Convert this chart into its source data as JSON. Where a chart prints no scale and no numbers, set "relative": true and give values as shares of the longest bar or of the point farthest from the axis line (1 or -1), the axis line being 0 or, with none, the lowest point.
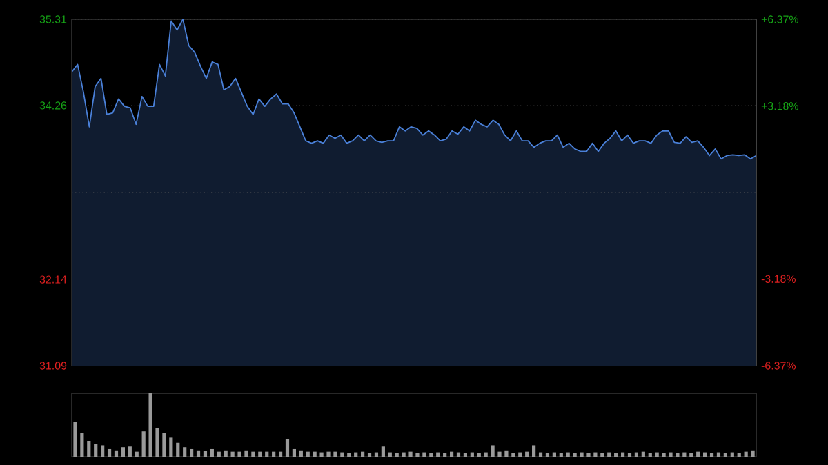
{
  "chart_data": [
    {
      "type": "area",
      "categories": [
        null,
        null,
        null,
        null,
        null,
        null,
        null,
        null,
        null,
        null,
        null,
        null,
        null,
        null,
        null,
        null,
        null,
        null,
        null,
        null,
        null,
        null,
        null,
        null,
        null,
        null,
        null,
        null,
        null,
        null,
        null,
        null,
        null,
        null,
        null,
        null,
        null,
        null,
        null,
        null,
        null,
        null,
        null,
        null,
        null,
        null,
        null,
        null,
        null,
        null,
        null,
        null,
        null,
        null,
        null,
        null,
        null,
        null,
        null,
        null,
        null,
        null,
        null,
        null,
        null,
        null,
        null,
        null,
        null,
        null,
        null,
        null,
        null,
        null,
        null,
        null,
        null,
        null,
        null,
        null,
        null,
        null,
        null,
        null,
        null,
        null,
        null,
        null,
        null,
        null,
        null,
        null,
        null,
        null,
        null,
        null,
        null,
        null,
        null,
        null,
        null,
        null,
        null,
        null,
        null,
        null,
        null,
        null,
        null,
        null,
        null,
        null,
        null,
        null,
        null,
        null,
        null,
        null
      ],
      "ylim": [
        31.09,
        35.31
      ],
      "yticks": [
        31.09,
        32.14,
        34.26,
        35.31
      ],
      "y2lim": [
        -6.37,
        6.37
      ],
      "y2ticks": [
        {
          "value": -6.37,
          "label": "-6.37%"
        },
        {
          "value": -3.18,
          "label": "-3.18%"
        },
        {
          "value": 3.18,
          "label": "+3.18%"
        },
        {
          "value": 6.37,
          "label": "+6.37%"
        }
      ],
      "ref_lines": [
        {
          "axis": "y",
          "value": 33.2,
          "line_style": "dotted"
        }
      ],
      "grid": "y",
      "series": [
        {
          "color": "#4a80d8",
          "values": [
            34.67,
            34.76,
            34.42,
            34.0,
            34.49,
            34.59,
            34.15,
            34.17,
            34.34,
            34.25,
            34.23,
            34.03,
            34.37,
            34.25,
            34.25,
            34.76,
            34.62,
            35.29,
            35.18,
            35.31,
            34.99,
            34.91,
            34.74,
            34.59,
            34.79,
            34.76,
            34.45,
            34.49,
            34.59,
            34.42,
            34.25,
            34.15,
            34.34,
            34.25,
            34.34,
            34.4,
            34.28,
            34.28,
            34.17,
            34.0,
            33.83,
            33.8,
            33.83,
            33.8,
            33.9,
            33.86,
            33.9,
            33.8,
            33.83,
            33.9,
            33.83,
            33.9,
            33.83,
            33.81,
            33.83,
            33.83,
            34.0,
            33.95,
            34.0,
            33.98,
            33.9,
            33.95,
            33.9,
            33.83,
            33.85,
            33.95,
            33.91,
            34.0,
            33.95,
            34.08,
            34.03,
            34.0,
            34.08,
            34.03,
            33.9,
            33.83,
            33.95,
            33.83,
            33.83,
            33.75,
            33.8,
            33.83,
            33.83,
            33.9,
            33.75,
            33.8,
            33.73,
            33.7,
            33.7,
            33.8,
            33.7,
            33.8,
            33.86,
            33.95,
            33.83,
            33.9,
            33.8,
            33.83,
            33.83,
            33.8,
            33.9,
            33.95,
            33.95,
            33.81,
            33.8,
            33.88,
            33.81,
            33.83,
            33.75,
            33.65,
            33.73,
            33.61,
            33.65,
            33.66,
            33.65,
            33.66,
            33.61,
            33.65
          ]
        }
      ]
    },
    {
      "type": "bar",
      "relative": true,
      "color": "#9a9a9a",
      "categories": [
        null,
        null,
        null,
        null,
        null,
        null,
        null,
        null,
        null,
        null,
        null,
        null,
        null,
        null,
        null,
        null,
        null,
        null,
        null,
        null,
        null,
        null,
        null,
        null,
        null,
        null,
        null,
        null,
        null,
        null,
        null,
        null,
        null,
        null,
        null,
        null,
        null,
        null,
        null,
        null,
        null,
        null,
        null,
        null,
        null,
        null,
        null,
        null,
        null,
        null,
        null,
        null,
        null,
        null,
        null,
        null,
        null,
        null,
        null,
        null,
        null,
        null,
        null,
        null,
        null,
        null,
        null,
        null,
        null,
        null,
        null,
        null,
        null,
        null,
        null,
        null,
        null,
        null,
        null,
        null,
        null,
        null,
        null,
        null,
        null,
        null,
        null,
        null,
        null,
        null,
        null,
        null,
        null,
        null,
        null,
        null,
        null,
        null,
        null,
        null
      ],
      "values": [
        0.55,
        0.37,
        0.25,
        0.2,
        0.18,
        0.12,
        0.1,
        0.15,
        0.16,
        0.08,
        0.4,
        1.0,
        0.45,
        0.37,
        0.3,
        0.22,
        0.15,
        0.12,
        0.1,
        0.09,
        0.12,
        0.08,
        0.1,
        0.08,
        0.08,
        0.1,
        0.08,
        0.08,
        0.08,
        0.08,
        0.08,
        0.28,
        0.12,
        0.1,
        0.08,
        0.08,
        0.07,
        0.08,
        0.08,
        0.07,
        0.06,
        0.07,
        0.08,
        0.06,
        0.07,
        0.16,
        0.07,
        0.06,
        0.07,
        0.08,
        0.06,
        0.07,
        0.06,
        0.07,
        0.06,
        0.08,
        0.07,
        0.06,
        0.07,
        0.06,
        0.07,
        0.18,
        0.08,
        0.1,
        0.06,
        0.07,
        0.08,
        0.18,
        0.07,
        0.06,
        0.07,
        0.06,
        0.07,
        0.06,
        0.07,
        0.06,
        0.07,
        0.06,
        0.07,
        0.06,
        0.07,
        0.06,
        0.07,
        0.08,
        0.06,
        0.07,
        0.06,
        0.07,
        0.06,
        0.07,
        0.06,
        0.08,
        0.07,
        0.06,
        0.07,
        0.06,
        0.07,
        0.06,
        0.08,
        0.1
      ]
    }
  ]
}
